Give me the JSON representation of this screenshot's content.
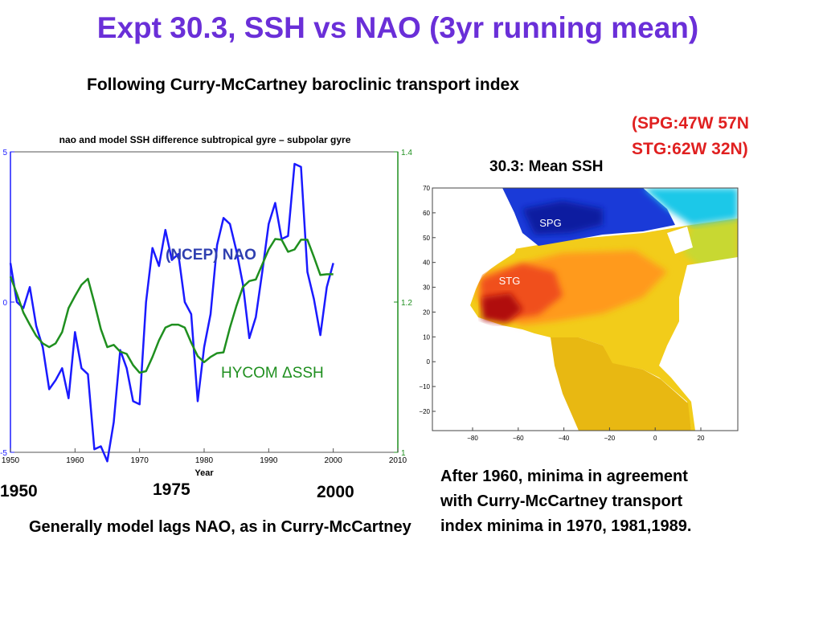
{
  "slide": {
    "title": "Expt 30.3, SSH vs NAO (3yr running mean)",
    "subtitle": "Following Curry-McCartney baroclinic transport index",
    "coords_line1": "(SPG:47W 57N",
    "coords_line2": "STG:62W 32N)",
    "map_title": "30.3: Mean SSH",
    "year_1950": "1950",
    "year_1975": "1975",
    "year_2000": "2000",
    "note_left": "Generally model lags NAO, as in Curry-McCartney",
    "note_right": "After 1960, minima in agreement with Curry-McCartney transport index minima in 1970, 1981,1989."
  },
  "colors": {
    "title": "#6a2fd8",
    "coords": "#e02020",
    "nao": "#1a1aff",
    "hycom": "#1f8f1f"
  },
  "chart_data": [
    {
      "type": "line",
      "title": "nao and model SSH difference subtropical gyre – subpolar gyre",
      "xlabel": "Year",
      "xlim": [
        1950,
        2010
      ],
      "x_ticks": [
        "1950",
        "1960",
        "1970",
        "1980",
        "1990",
        "2000",
        "2010"
      ],
      "ylim_left": [
        -5,
        5
      ],
      "y_ticks_left": [
        "-5",
        "0",
        "5"
      ],
      "ylim_right": [
        1,
        1.4
      ],
      "y_ticks_right": [
        "1",
        "1.2",
        "1.4"
      ],
      "annotations": [
        "(NCEP) NAO",
        "HYCOM ΔSSH"
      ],
      "series": [
        {
          "name": "(NCEP) NAO",
          "axis": "left",
          "color": "#1a1aff",
          "x": [
            1950,
            1951,
            1952,
            1953,
            1954,
            1955,
            1956,
            1957,
            1958,
            1959,
            1960,
            1961,
            1962,
            1963,
            1964,
            1965,
            1966,
            1967,
            1968,
            1969,
            1970,
            1971,
            1972,
            1973,
            1974,
            1975,
            1976,
            1977,
            1978,
            1979,
            1980,
            1981,
            1982,
            1983,
            1984,
            1985,
            1986,
            1987,
            1988,
            1989,
            1990,
            1991,
            1992,
            1993,
            1994,
            1995,
            1996,
            1997,
            1998,
            1999,
            2000
          ],
          "y": [
            1.3,
            0.0,
            -0.2,
            0.5,
            -0.8,
            -1.5,
            -2.9,
            -2.6,
            -2.2,
            -3.2,
            -1.0,
            -2.2,
            -2.4,
            -4.9,
            -4.8,
            -5.3,
            -4.0,
            -1.6,
            -2.2,
            -3.3,
            -3.4,
            0.0,
            1.8,
            1.2,
            2.4,
            1.4,
            1.6,
            0.0,
            -0.4,
            -3.3,
            -1.5,
            -0.4,
            1.9,
            2.8,
            2.6,
            1.7,
            0.6,
            -1.2,
            -0.5,
            1.0,
            2.6,
            3.3,
            2.1,
            2.2,
            4.6,
            4.5,
            1.0,
            0.1,
            -1.1,
            0.5,
            1.3
          ]
        },
        {
          "name": "HYCOM ΔSSH",
          "axis": "right",
          "color": "#1f8f1f",
          "x": [
            1950,
            1951,
            1952,
            1953,
            1954,
            1955,
            1956,
            1957,
            1958,
            1959,
            1960,
            1961,
            1962,
            1963,
            1964,
            1965,
            1966,
            1967,
            1968,
            1969,
            1970,
            1971,
            1972,
            1973,
            1974,
            1975,
            1976,
            1977,
            1978,
            1979,
            1980,
            1981,
            1982,
            1983,
            1984,
            1985,
            1986,
            1987,
            1988,
            1989,
            1990,
            1991,
            1992,
            1993,
            1994,
            1995,
            1996,
            1997,
            1998,
            1999,
            2000
          ],
          "y": [
            1.234,
            1.211,
            1.186,
            1.17,
            1.155,
            1.145,
            1.14,
            1.145,
            1.16,
            1.192,
            1.208,
            1.223,
            1.231,
            1.199,
            1.164,
            1.14,
            1.143,
            1.134,
            1.131,
            1.116,
            1.106,
            1.108,
            1.127,
            1.149,
            1.166,
            1.17,
            1.17,
            1.166,
            1.146,
            1.128,
            1.12,
            1.127,
            1.132,
            1.133,
            1.166,
            1.195,
            1.22,
            1.228,
            1.23,
            1.25,
            1.27,
            1.284,
            1.283,
            1.267,
            1.27,
            1.283,
            1.283,
            1.26,
            1.236,
            1.237,
            1.237
          ]
        }
      ]
    },
    {
      "type": "heatmap",
      "title": "30.3: Mean SSH",
      "x_ticks": [
        "−80",
        "−60",
        "−40",
        "−20",
        "0",
        "20"
      ],
      "y_ticks": [
        "70",
        "60",
        "50",
        "40",
        "30",
        "20",
        "10",
        "0",
        "−10",
        "−20"
      ],
      "region_labels": [
        "SPG",
        "STG"
      ]
    }
  ]
}
